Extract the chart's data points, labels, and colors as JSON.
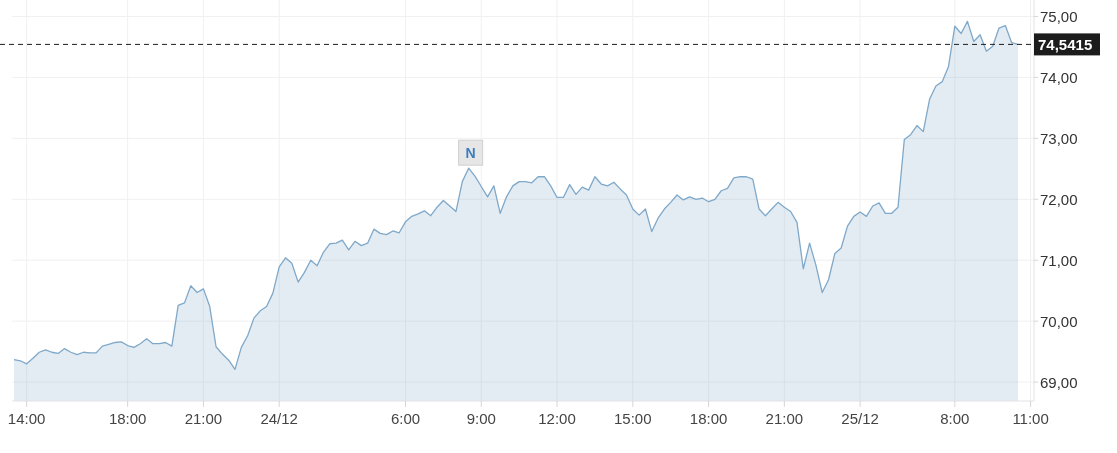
{
  "chart_data": {
    "type": "area",
    "categories": [
      null,
      null,
      "14:00",
      null,
      null,
      null,
      null,
      null,
      null,
      null,
      null,
      null,
      null,
      null,
      null,
      null,
      null,
      null,
      "18:00",
      null,
      null,
      null,
      null,
      null,
      null,
      null,
      null,
      null,
      null,
      null,
      "21:00",
      null,
      null,
      null,
      null,
      null,
      null,
      null,
      null,
      null,
      null,
      null,
      "24/12",
      null,
      null,
      null,
      null,
      null,
      null,
      null,
      null,
      null,
      null,
      null,
      null,
      null,
      null,
      null,
      null,
      null,
      null,
      null,
      "6:00",
      null,
      null,
      null,
      null,
      null,
      null,
      null,
      null,
      null,
      null,
      null,
      "9:00",
      null,
      null,
      null,
      null,
      null,
      null,
      null,
      null,
      null,
      null,
      null,
      "12:00",
      null,
      null,
      null,
      null,
      null,
      null,
      null,
      null,
      null,
      null,
      null,
      "15:00",
      null,
      null,
      null,
      null,
      null,
      null,
      null,
      null,
      null,
      null,
      null,
      "18:00",
      null,
      null,
      null,
      null,
      null,
      null,
      null,
      null,
      null,
      null,
      null,
      "21:00",
      null,
      null,
      null,
      null,
      null,
      null,
      null,
      null,
      null,
      null,
      null,
      "25/12",
      null,
      null,
      null,
      null,
      null,
      null,
      null,
      null,
      null,
      null,
      null,
      null,
      null,
      null,
      "8:00",
      null,
      null,
      null,
      null,
      null,
      null,
      null,
      null,
      null,
      null,
      null,
      "11:00"
    ],
    "series": [
      {
        "color": "#7fa8c9",
        "values": [
          69.37,
          69.35,
          69.3,
          69.39,
          69.49,
          69.53,
          69.49,
          69.47,
          69.55,
          69.49,
          69.45,
          69.49,
          69.48,
          69.48,
          69.59,
          69.62,
          69.65,
          69.66,
          69.6,
          69.57,
          69.63,
          69.71,
          69.63,
          69.63,
          69.65,
          69.59,
          70.26,
          70.3,
          70.58,
          70.47,
          70.53,
          70.24,
          69.58,
          69.46,
          69.36,
          69.21,
          69.57,
          69.76,
          70.05,
          70.17,
          70.24,
          70.46,
          70.89,
          71.04,
          70.95,
          70.64,
          70.8,
          71.0,
          70.91,
          71.13,
          71.27,
          71.28,
          71.33,
          71.17,
          71.31,
          71.24,
          71.28,
          71.51,
          71.44,
          71.42,
          71.48,
          71.45,
          71.63,
          71.72,
          71.76,
          71.81,
          71.73,
          71.87,
          71.98,
          71.89,
          71.8,
          72.29,
          72.51,
          72.38,
          72.21,
          72.04,
          72.22,
          71.77,
          72.04,
          72.22,
          72.29,
          72.29,
          72.27,
          72.37,
          72.37,
          72.22,
          72.03,
          72.03,
          72.24,
          72.08,
          72.2,
          72.15,
          72.37,
          72.25,
          72.22,
          72.28,
          72.17,
          72.07,
          71.84,
          71.74,
          71.84,
          71.47,
          71.69,
          71.84,
          71.95,
          72.07,
          71.99,
          72.04,
          72.0,
          72.02,
          71.96,
          72.0,
          72.14,
          72.18,
          72.35,
          72.37,
          72.37,
          72.33,
          71.84,
          71.73,
          71.84,
          71.95,
          71.87,
          71.8,
          71.62,
          70.86,
          71.28,
          70.92,
          70.47,
          70.68,
          71.11,
          71.2,
          71.56,
          71.72,
          71.79,
          71.72,
          71.89,
          71.94,
          71.77,
          71.77,
          71.87,
          72.98,
          73.06,
          73.21,
          73.11,
          73.64,
          73.86,
          73.93,
          74.18,
          74.84,
          74.72,
          74.92,
          74.59,
          74.7,
          74.43,
          74.51,
          74.81,
          74.85,
          74.57,
          74.54,
          null,
          null
        ]
      }
    ],
    "ylim": [
      68.69,
      75.27
    ],
    "yticks": [
      {
        "value": 69,
        "label": "69,00"
      },
      {
        "value": 70,
        "label": "70,00"
      },
      {
        "value": 71,
        "label": "71,00"
      },
      {
        "value": 72,
        "label": "72,00"
      },
      {
        "value": 73,
        "label": "73,00"
      },
      {
        "value": 74,
        "label": "74,00"
      },
      {
        "value": 75,
        "label": "75,00"
      }
    ],
    "grid": true,
    "ref_lines": [
      {
        "axis": "y",
        "value": 74.5415,
        "label": "74,5415",
        "color": "#1c1c1c",
        "line_style": "dashed"
      }
    ],
    "annotations": [
      {
        "text": "N",
        "y": 72.51
      }
    ]
  }
}
